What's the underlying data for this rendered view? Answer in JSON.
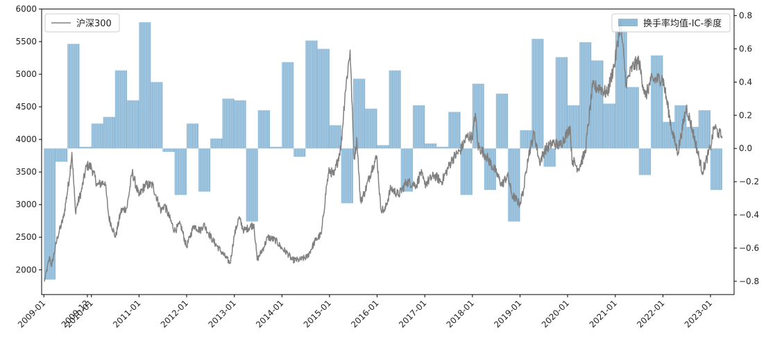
{
  "chart_data": {
    "type": "bar+line",
    "colors": {
      "line": "#808080",
      "bar": "#1f77b4",
      "bar_opacity": 0.5,
      "axes": "#000000"
    },
    "x_ticks": [
      "2009-01",
      "2009-12",
      "2010-01",
      "2011-01",
      "2012-01",
      "2013-01",
      "2014-01",
      "2015-01",
      "2016-01",
      "2017-01",
      "2018-01",
      "2019-01",
      "2020-01",
      "2021-01",
      "2022-01",
      "2023-01"
    ],
    "xlim": [
      "2008-12-15",
      "2023-07-01"
    ],
    "left_axis": {
      "ylim": [
        1620,
        6000
      ],
      "ticks": [
        2000,
        2500,
        3000,
        3500,
        4000,
        4500,
        5000,
        5500,
        6000
      ]
    },
    "right_axis": {
      "ylim": [
        -0.88,
        0.84
      ],
      "ticks": [
        -0.8,
        -0.6,
        -0.4,
        -0.2,
        0.0,
        0.2,
        0.4,
        0.6,
        0.8
      ],
      "tick_labels": [
        "−0.8",
        "−0.6",
        "−0.4",
        "−0.2",
        "0.0",
        "0.2",
        "0.4",
        "0.6",
        "0.8"
      ]
    },
    "legend_line": {
      "label": "沪深300",
      "position": "upper-left"
    },
    "legend_bar": {
      "label": "换手率均值-IC-季度",
      "position": "upper-right"
    },
    "line_series": {
      "name": "沪深300",
      "points": [
        [
          "2009-01-05",
          1820
        ],
        [
          "2009-02-15",
          2200
        ],
        [
          "2009-03-01",
          2050
        ],
        [
          "2009-04-15",
          2500
        ],
        [
          "2009-06-01",
          2800
        ],
        [
          "2009-07-15",
          3400
        ],
        [
          "2009-08-04",
          3800
        ],
        [
          "2009-08-31",
          2900
        ],
        [
          "2009-10-15",
          3200
        ],
        [
          "2009-11-25",
          3600
        ],
        [
          "2009-12-31",
          3580
        ],
        [
          "2010-02-15",
          3300
        ],
        [
          "2010-04-15",
          3350
        ],
        [
          "2010-05-15",
          2800
        ],
        [
          "2010-07-05",
          2500
        ],
        [
          "2010-08-15",
          2900
        ],
        [
          "2010-09-30",
          2950
        ],
        [
          "2010-11-10",
          3500
        ],
        [
          "2010-12-31",
          3130
        ],
        [
          "2011-02-15",
          3300
        ],
        [
          "2011-04-15",
          3300
        ],
        [
          "2011-06-20",
          2900
        ],
        [
          "2011-07-15",
          3000
        ],
        [
          "2011-09-30",
          2600
        ],
        [
          "2011-11-15",
          2700
        ],
        [
          "2011-12-31",
          2350
        ],
        [
          "2012-02-25",
          2680
        ],
        [
          "2012-04-15",
          2600
        ],
        [
          "2012-05-10",
          2700
        ],
        [
          "2012-07-20",
          2450
        ],
        [
          "2012-09-15",
          2300
        ],
        [
          "2012-11-30",
          2100
        ],
        [
          "2012-12-31",
          2520
        ],
        [
          "2013-02-05",
          2800
        ],
        [
          "2013-03-15",
          2600
        ],
        [
          "2013-05-31",
          2700
        ],
        [
          "2013-06-25",
          2150
        ],
        [
          "2013-08-15",
          2350
        ],
        [
          "2013-09-15",
          2500
        ],
        [
          "2013-11-15",
          2450
        ],
        [
          "2013-12-31",
          2330
        ],
        [
          "2014-02-15",
          2250
        ],
        [
          "2014-03-20",
          2150
        ],
        [
          "2014-05-15",
          2150
        ],
        [
          "2014-07-15",
          2200
        ],
        [
          "2014-09-15",
          2450
        ],
        [
          "2014-10-31",
          2550
        ],
        [
          "2014-12-10",
          3300
        ],
        [
          "2014-12-31",
          3530
        ],
        [
          "2015-02-05",
          3450
        ],
        [
          "2015-03-31",
          3900
        ],
        [
          "2015-04-30",
          4700
        ],
        [
          "2015-06-08",
          5370
        ],
        [
          "2015-07-08",
          3700
        ],
        [
          "2015-07-31",
          4000
        ],
        [
          "2015-08-26",
          3050
        ],
        [
          "2015-09-30",
          3200
        ],
        [
          "2015-11-30",
          3600
        ],
        [
          "2015-12-31",
          3730
        ],
        [
          "2016-01-28",
          2950
        ],
        [
          "2016-02-28",
          2900
        ],
        [
          "2016-04-15",
          3250
        ],
        [
          "2016-06-15",
          3150
        ],
        [
          "2016-08-15",
          3350
        ],
        [
          "2016-10-31",
          3300
        ],
        [
          "2016-11-30",
          3500
        ],
        [
          "2016-12-31",
          3310
        ],
        [
          "2017-03-15",
          3450
        ],
        [
          "2017-05-10",
          3350
        ],
        [
          "2017-07-31",
          3700
        ],
        [
          "2017-09-30",
          3830
        ],
        [
          "2017-11-22",
          4050
        ],
        [
          "2017-12-31",
          4030
        ],
        [
          "2018-01-24",
          4400
        ],
        [
          "2018-02-12",
          3900
        ],
        [
          "2018-04-15",
          3750
        ],
        [
          "2018-06-30",
          3500
        ],
        [
          "2018-08-15",
          3300
        ],
        [
          "2018-09-28",
          3450
        ],
        [
          "2018-10-31",
          3150
        ],
        [
          "2018-12-31",
          3010
        ],
        [
          "2019-01-31",
          3250
        ],
        [
          "2019-02-28",
          3700
        ],
        [
          "2019-04-19",
          4100
        ],
        [
          "2019-05-31",
          3650
        ],
        [
          "2019-07-15",
          3850
        ],
        [
          "2019-09-15",
          3950
        ],
        [
          "2019-10-31",
          3900
        ],
        [
          "2019-12-31",
          4100
        ],
        [
          "2020-01-20",
          4200
        ],
        [
          "2020-02-03",
          3700
        ],
        [
          "2020-03-23",
          3550
        ],
        [
          "2020-05-15",
          3800
        ],
        [
          "2020-07-10",
          4800
        ],
        [
          "2020-08-31",
          4800
        ],
        [
          "2020-10-31",
          4700
        ],
        [
          "2020-12-31",
          5210
        ],
        [
          "2021-02-10",
          5800
        ],
        [
          "2021-03-25",
          4850
        ],
        [
          "2021-05-10",
          5100
        ],
        [
          "2021-06-30",
          5200
        ],
        [
          "2021-08-20",
          4650
        ],
        [
          "2021-09-30",
          4900
        ],
        [
          "2021-12-31",
          4940
        ],
        [
          "2022-03-15",
          4100
        ],
        [
          "2022-04-26",
          3800
        ],
        [
          "2022-06-30",
          4500
        ],
        [
          "2022-08-15",
          4150
        ],
        [
          "2022-10-31",
          3500
        ],
        [
          "2022-12-31",
          3870
        ],
        [
          "2023-01-31",
          4200
        ],
        [
          "2023-02-28",
          4100
        ],
        [
          "2023-03-31",
          4050
        ]
      ]
    },
    "bar_series": {
      "name": "换手率均值-IC-季度",
      "bars": [
        [
          "2009-01",
          -0.79
        ],
        [
          "2009-04",
          -0.08
        ],
        [
          "2009-07",
          0.63
        ],
        [
          "2009-10",
          0.01
        ],
        [
          "2010-01",
          0.15
        ],
        [
          "2010-04",
          0.19
        ],
        [
          "2010-07",
          0.47
        ],
        [
          "2010-10",
          0.29
        ],
        [
          "2011-01",
          0.76
        ],
        [
          "2011-04",
          0.4
        ],
        [
          "2011-07",
          -0.02
        ],
        [
          "2011-10",
          -0.28
        ],
        [
          "2012-01",
          0.15
        ],
        [
          "2012-04",
          -0.26
        ],
        [
          "2012-07",
          0.06
        ],
        [
          "2012-10",
          0.3
        ],
        [
          "2013-01",
          0.29
        ],
        [
          "2013-04",
          -0.44
        ],
        [
          "2013-07",
          0.23
        ],
        [
          "2013-10",
          0.01
        ],
        [
          "2014-01",
          0.52
        ],
        [
          "2014-04",
          -0.05
        ],
        [
          "2014-07",
          0.65
        ],
        [
          "2014-10",
          0.6
        ],
        [
          "2015-01",
          0.14
        ],
        [
          "2015-04",
          -0.33
        ],
        [
          "2015-07",
          0.42
        ],
        [
          "2015-10",
          0.24
        ],
        [
          "2016-01",
          0.02
        ],
        [
          "2016-04",
          0.47
        ],
        [
          "2016-07",
          -0.26
        ],
        [
          "2016-10",
          0.26
        ],
        [
          "2017-01",
          0.03
        ],
        [
          "2017-04",
          0.01
        ],
        [
          "2017-07",
          0.22
        ],
        [
          "2017-10",
          -0.28
        ],
        [
          "2018-01",
          0.39
        ],
        [
          "2018-04",
          -0.25
        ],
        [
          "2018-07",
          0.33
        ],
        [
          "2018-10",
          -0.44
        ],
        [
          "2019-01",
          0.11
        ],
        [
          "2019-04",
          0.66
        ],
        [
          "2019-07",
          -0.11
        ],
        [
          "2019-10",
          0.55
        ],
        [
          "2020-01",
          0.26
        ],
        [
          "2020-04",
          0.64
        ],
        [
          "2020-07",
          0.53
        ],
        [
          "2020-10",
          0.27
        ],
        [
          "2021-01",
          0.71
        ],
        [
          "2021-04",
          0.37
        ],
        [
          "2021-07",
          -0.16
        ],
        [
          "2021-10",
          0.56
        ],
        [
          "2022-01",
          0.16
        ],
        [
          "2022-04",
          0.26
        ],
        [
          "2022-07",
          0.13
        ],
        [
          "2022-10",
          0.23
        ],
        [
          "2023-01",
          -0.25
        ]
      ]
    }
  }
}
